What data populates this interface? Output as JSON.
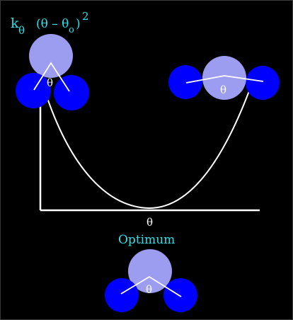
{
  "formula": {
    "k": "k",
    "k_sub": "θ",
    "open": "(θ – θ",
    "theta0_sub": "o",
    "close": ")",
    "exponent": "2"
  },
  "molecules": {
    "bent_angle_label": "θ",
    "linear_angle_label": "θ",
    "optimum_angle_label": "θ"
  },
  "axis": {
    "x_label": "θ"
  },
  "optimum_label": "Optimum",
  "colors": {
    "background": "#000000",
    "atom_blue": "#0000ff",
    "center_atom": "#9c9cf0",
    "label_cyan": "#2fe0e8",
    "curve": "#ffffff"
  }
}
